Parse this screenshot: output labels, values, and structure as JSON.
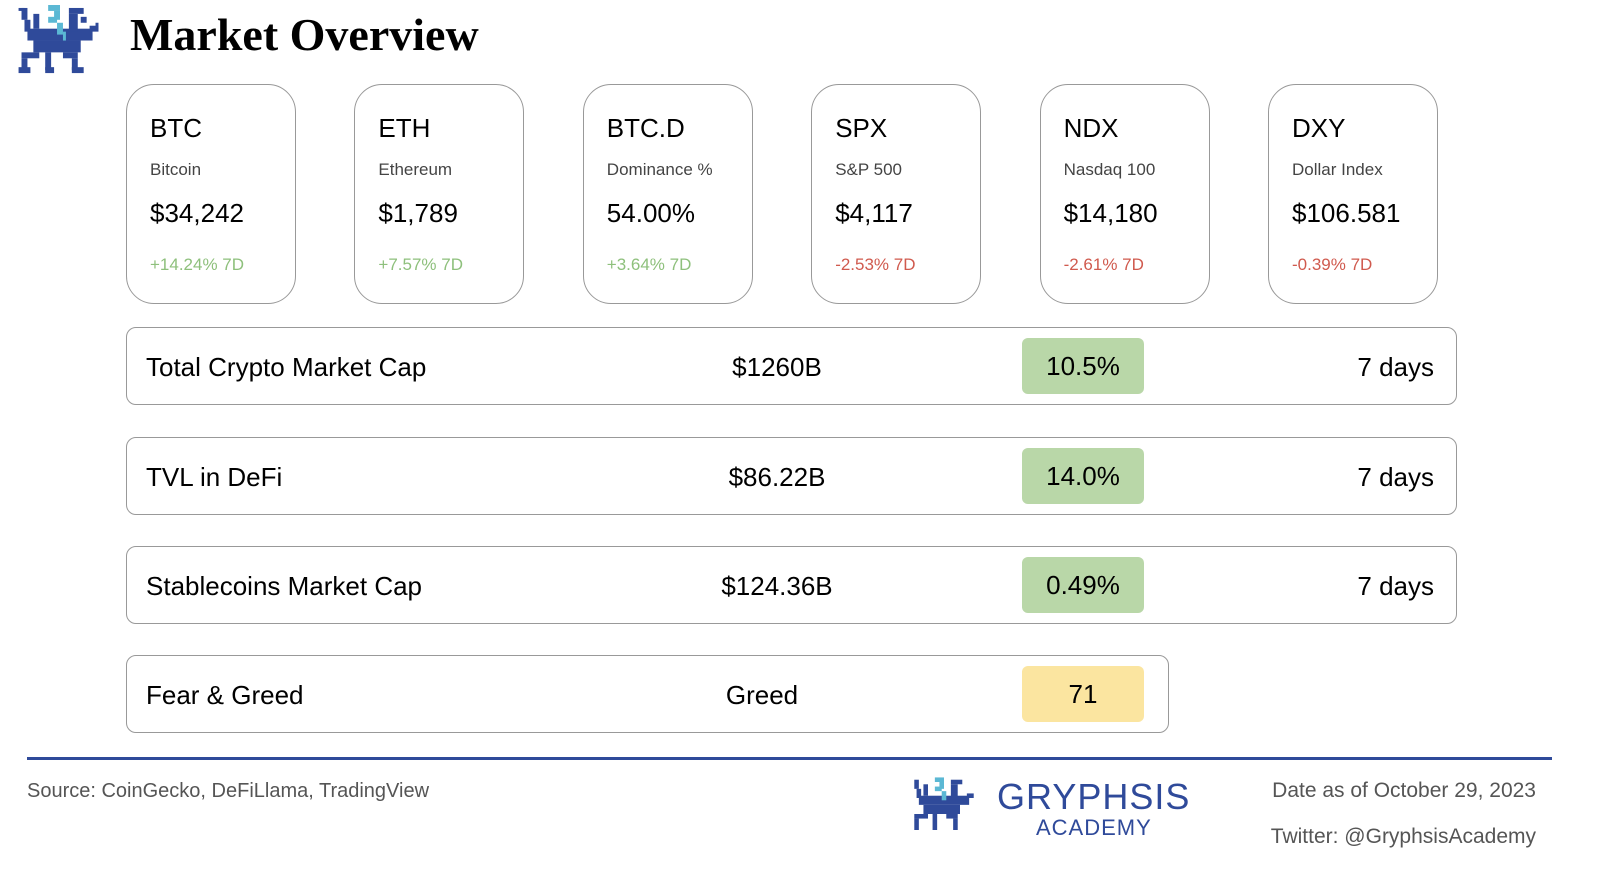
{
  "header": {
    "title": "Market Overview",
    "logo": "gryphon-pixel-logo"
  },
  "cards": [
    {
      "symbol": "BTC",
      "name": "Bitcoin",
      "price": "$34,242",
      "change": "+14.24% 7D",
      "trend": "up"
    },
    {
      "symbol": "ETH",
      "name": "Ethereum",
      "price": "$1,789",
      "change": "+7.57% 7D",
      "trend": "up"
    },
    {
      "symbol": "BTC.D",
      "name": "Dominance %",
      "price": "54.00%",
      "change": "+3.64% 7D",
      "trend": "up"
    },
    {
      "symbol": "SPX",
      "name": "S&P 500",
      "price": "$4,117",
      "change": "-2.53% 7D",
      "trend": "down"
    },
    {
      "symbol": "NDX",
      "name": "Nasdaq 100",
      "price": "$14,180",
      "change": "-2.61% 7D",
      "trend": "down"
    },
    {
      "symbol": "DXY",
      "name": "Dollar Index",
      "price": "$106.581",
      "change": "-0.39% 7D",
      "trend": "down"
    }
  ],
  "metrics": [
    {
      "label": "Total Crypto Market Cap",
      "value": "$1260B",
      "change": "10.5%",
      "period": "7 days"
    },
    {
      "label": "TVL in DeFi",
      "value": "$86.22B",
      "change": "14.0%",
      "period": "7 days"
    },
    {
      "label": "Stablecoins Market Cap",
      "value": "$124.36B",
      "change": "0.49%",
      "period": "7 days"
    }
  ],
  "fear_greed": {
    "label": "Fear & Greed",
    "value": "Greed",
    "score": "71"
  },
  "footer": {
    "source": "Source: CoinGecko, DeFiLlama, TradingView",
    "brand": "GRYPHSIS",
    "brand_sub": "ACADEMY",
    "date": "Date as of October 29, 2023",
    "twitter": "Twitter: @GryphsisAcademy"
  },
  "colors": {
    "up": "#8ec07c",
    "down": "#d05a4e",
    "badge_green": "#b9d7a8",
    "badge_yellow": "#fbe5a0",
    "brand_blue": "#2f4a9a",
    "brand_cyan": "#5bb8d4"
  }
}
